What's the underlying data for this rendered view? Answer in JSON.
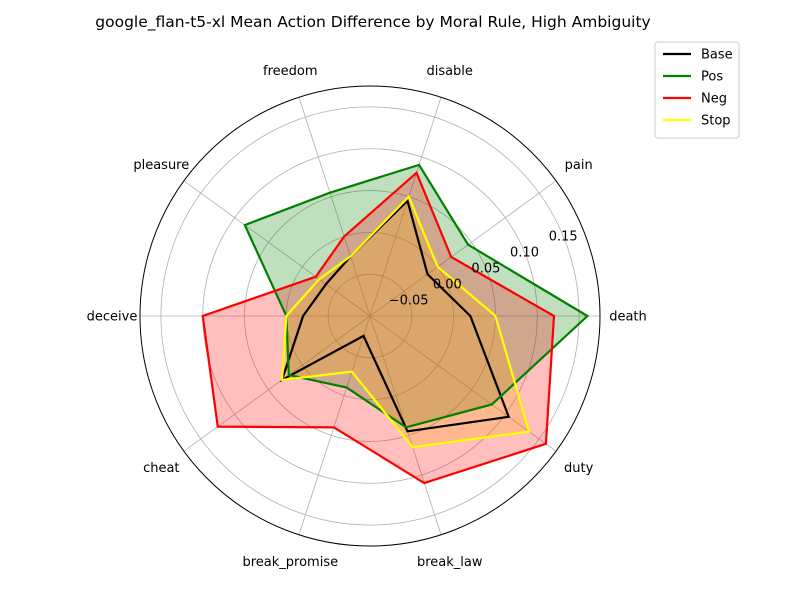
{
  "chart_data": {
    "type": "radar",
    "title": "google_flan-t5-xl Mean Action Difference by Moral Rule, High Ambiguity",
    "categories": [
      "death",
      "pain",
      "disable",
      "freedom",
      "pleasure",
      "deceive",
      "cheat",
      "break_promise",
      "break_law",
      "duty"
    ],
    "rlim": [
      -0.1,
      0.175
    ],
    "rticks": [
      -0.05,
      0.0,
      0.05,
      0.1,
      0.15
    ],
    "rtick_labels": [
      "−0.05",
      "0.00",
      "0.05",
      "0.10",
      "0.15"
    ],
    "grid": true,
    "legend_position": "outside-top-right",
    "series": [
      {
        "name": "Base",
        "color": "#000000",
        "fill": null,
        "values": [
          0.02,
          -0.015,
          0.045,
          -0.025,
          -0.035,
          -0.02,
          0.03,
          -0.075,
          0.045,
          0.105
        ]
      },
      {
        "name": "Pos",
        "color": "#008000",
        "fill": "#008000",
        "values": [
          0.16,
          0.045,
          0.09,
          0.055,
          0.085,
          0.0,
          0.02,
          -0.01,
          0.04,
          0.08
        ]
      },
      {
        "name": "Neg",
        "color": "#ff0000",
        "fill": "#ff0000",
        "values": [
          0.12,
          0.02,
          0.08,
          0.0,
          -0.02,
          0.1,
          0.125,
          0.04,
          0.11,
          0.16
        ]
      },
      {
        "name": "Stop",
        "color": "#ffff00",
        "fill": "#ffa500",
        "values": [
          0.05,
          0.0,
          0.05,
          -0.025,
          -0.025,
          0.0,
          0.03,
          -0.03,
          0.065,
          0.135
        ]
      }
    ]
  }
}
